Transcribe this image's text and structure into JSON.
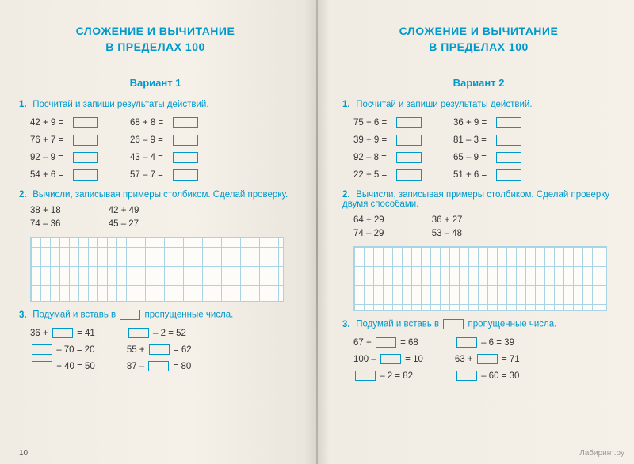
{
  "style": {
    "accent_color": "#0099cc",
    "grid_color": "#a8d4e6",
    "text_color": "#333333",
    "bg_color": "#f5f1e9",
    "box_border": "#0099cc",
    "title_fontsize": 14,
    "body_fontsize": 11.5,
    "grid_cell": 12
  },
  "left": {
    "title_line1": "СЛОЖЕНИЕ И ВЫЧИТАНИЕ",
    "title_line2": "В ПРЕДЕЛАХ 100",
    "variant": "Вариант 1",
    "task1": {
      "num": "1.",
      "text": "Посчитай и запиши результаты действий.",
      "colA": [
        "42 + 9 =",
        "76 + 7 =",
        "92 – 9 =",
        "54 + 6 ="
      ],
      "colB": [
        "68 + 8 =",
        "26 – 9 =",
        "43 – 4 =",
        "57 – 7 ="
      ]
    },
    "task2": {
      "num": "2.",
      "text": "Вычисли, записывая примеры столбиком. Сделай проверку.",
      "colA": [
        "38 + 18",
        "74 – 36"
      ],
      "colB": [
        "42 + 49",
        "45 – 27"
      ]
    },
    "task3": {
      "num": "3.",
      "text_pre": "Подумай и вставь в ",
      "text_post": " пропущенные числа.",
      "colA": [
        {
          "pre": "36 + ",
          "box": true,
          "post": " = 41"
        },
        {
          "pre": "",
          "box": true,
          "post": " – 70 = 20"
        },
        {
          "pre": "",
          "box": true,
          "post": " + 40 = 50"
        }
      ],
      "colB": [
        {
          "pre": "",
          "box": true,
          "post": " – 2 = 52"
        },
        {
          "pre": "55 + ",
          "box": true,
          "post": " = 62"
        },
        {
          "pre": "87 – ",
          "box": true,
          "post": " = 80"
        }
      ]
    },
    "page_num": "10"
  },
  "right": {
    "title_line1": "СЛОЖЕНИЕ И ВЫЧИТАНИЕ",
    "title_line2": "В ПРЕДЕЛАХ 100",
    "variant": "Вариант 2",
    "task1": {
      "num": "1.",
      "text": "Посчитай и запиши результаты действий.",
      "colA": [
        "75 + 6 =",
        "39 + 9 =",
        "92 – 8 =",
        "22 + 5 ="
      ],
      "colB": [
        "36 + 9 =",
        "81 – 3 =",
        "65 – 9 =",
        "51 + 6 ="
      ]
    },
    "task2": {
      "num": "2.",
      "text": "Вычисли, записывая примеры столбиком. Сделай проверку двумя способами.",
      "colA": [
        "64 + 29",
        "74 – 29"
      ],
      "colB": [
        "36 + 27",
        "53 – 48"
      ]
    },
    "task3": {
      "num": "3.",
      "text_pre": "Подумай и вставь в ",
      "text_post": " пропущенные числа.",
      "colA": [
        {
          "pre": "67 + ",
          "box": true,
          "post": " = 68"
        },
        {
          "pre": "100 – ",
          "box": true,
          "post": " = 10"
        },
        {
          "pre": "",
          "box": true,
          "post": " – 2 = 82"
        }
      ],
      "colB": [
        {
          "pre": "",
          "box": true,
          "post": " – 6 = 39"
        },
        {
          "pre": "63 + ",
          "box": true,
          "post": " = 71"
        },
        {
          "pre": "",
          "box": true,
          "post": " – 60 = 30"
        }
      ]
    }
  },
  "watermark": "Лабиринт.ру"
}
